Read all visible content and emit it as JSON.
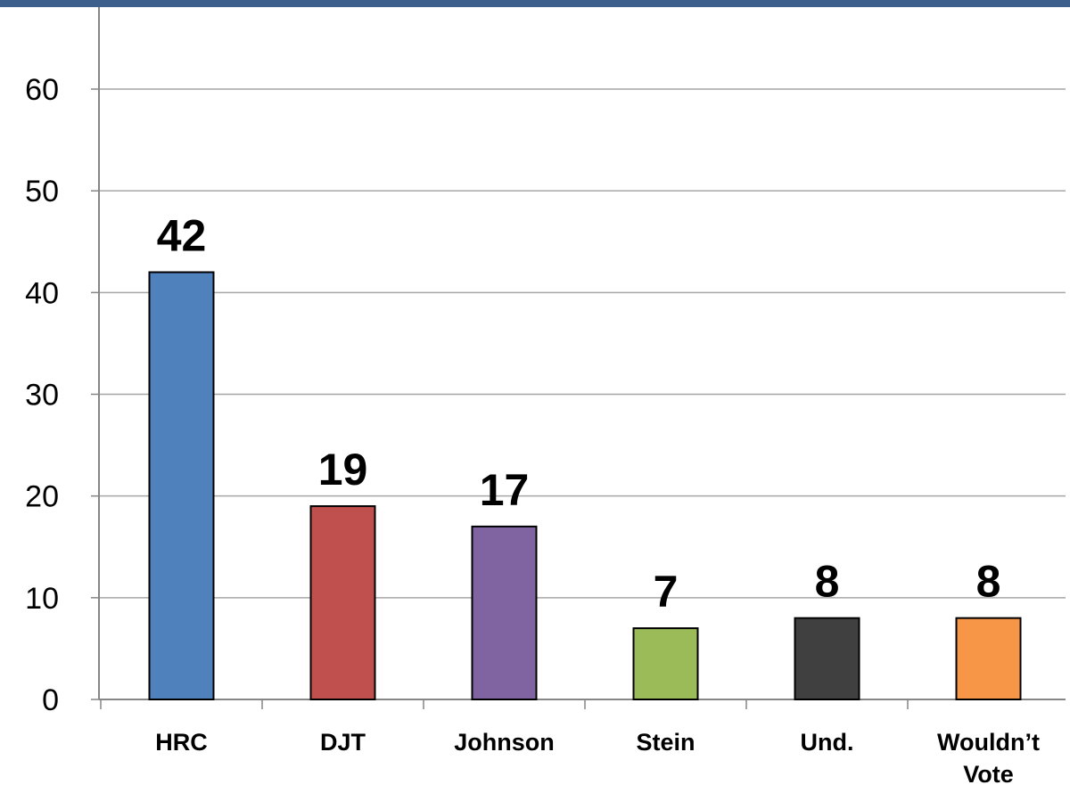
{
  "chart_data": {
    "type": "bar",
    "categories": [
      "HRC",
      "DJT",
      "Johnson",
      "Stein",
      "Und.",
      "Wouldn’t Vote"
    ],
    "category_lines": [
      [
        "HRC"
      ],
      [
        "DJT"
      ],
      [
        "Johnson"
      ],
      [
        "Stein"
      ],
      [
        "Und."
      ],
      [
        "Wouldn’t",
        "Vote"
      ]
    ],
    "values": [
      42,
      19,
      17,
      7,
      8,
      8
    ],
    "data_labels": [
      "42",
      "19",
      "17",
      "7",
      "8",
      "8"
    ],
    "colors": [
      "#4f81bd",
      "#c0504d",
      "#8064a2",
      "#9bbb59",
      "#404040",
      "#f79646"
    ],
    "ylim": [
      0,
      60
    ],
    "yticks": [
      0,
      10,
      20,
      30,
      40,
      50,
      60
    ],
    "grid": true,
    "legend": "none",
    "title": "",
    "xlabel": "",
    "ylabel": ""
  },
  "colors": {
    "accent_bar": "#3d5f8c",
    "gridline": "#a6a6a6",
    "axis": "#868686",
    "bar_outline": "#000000"
  }
}
